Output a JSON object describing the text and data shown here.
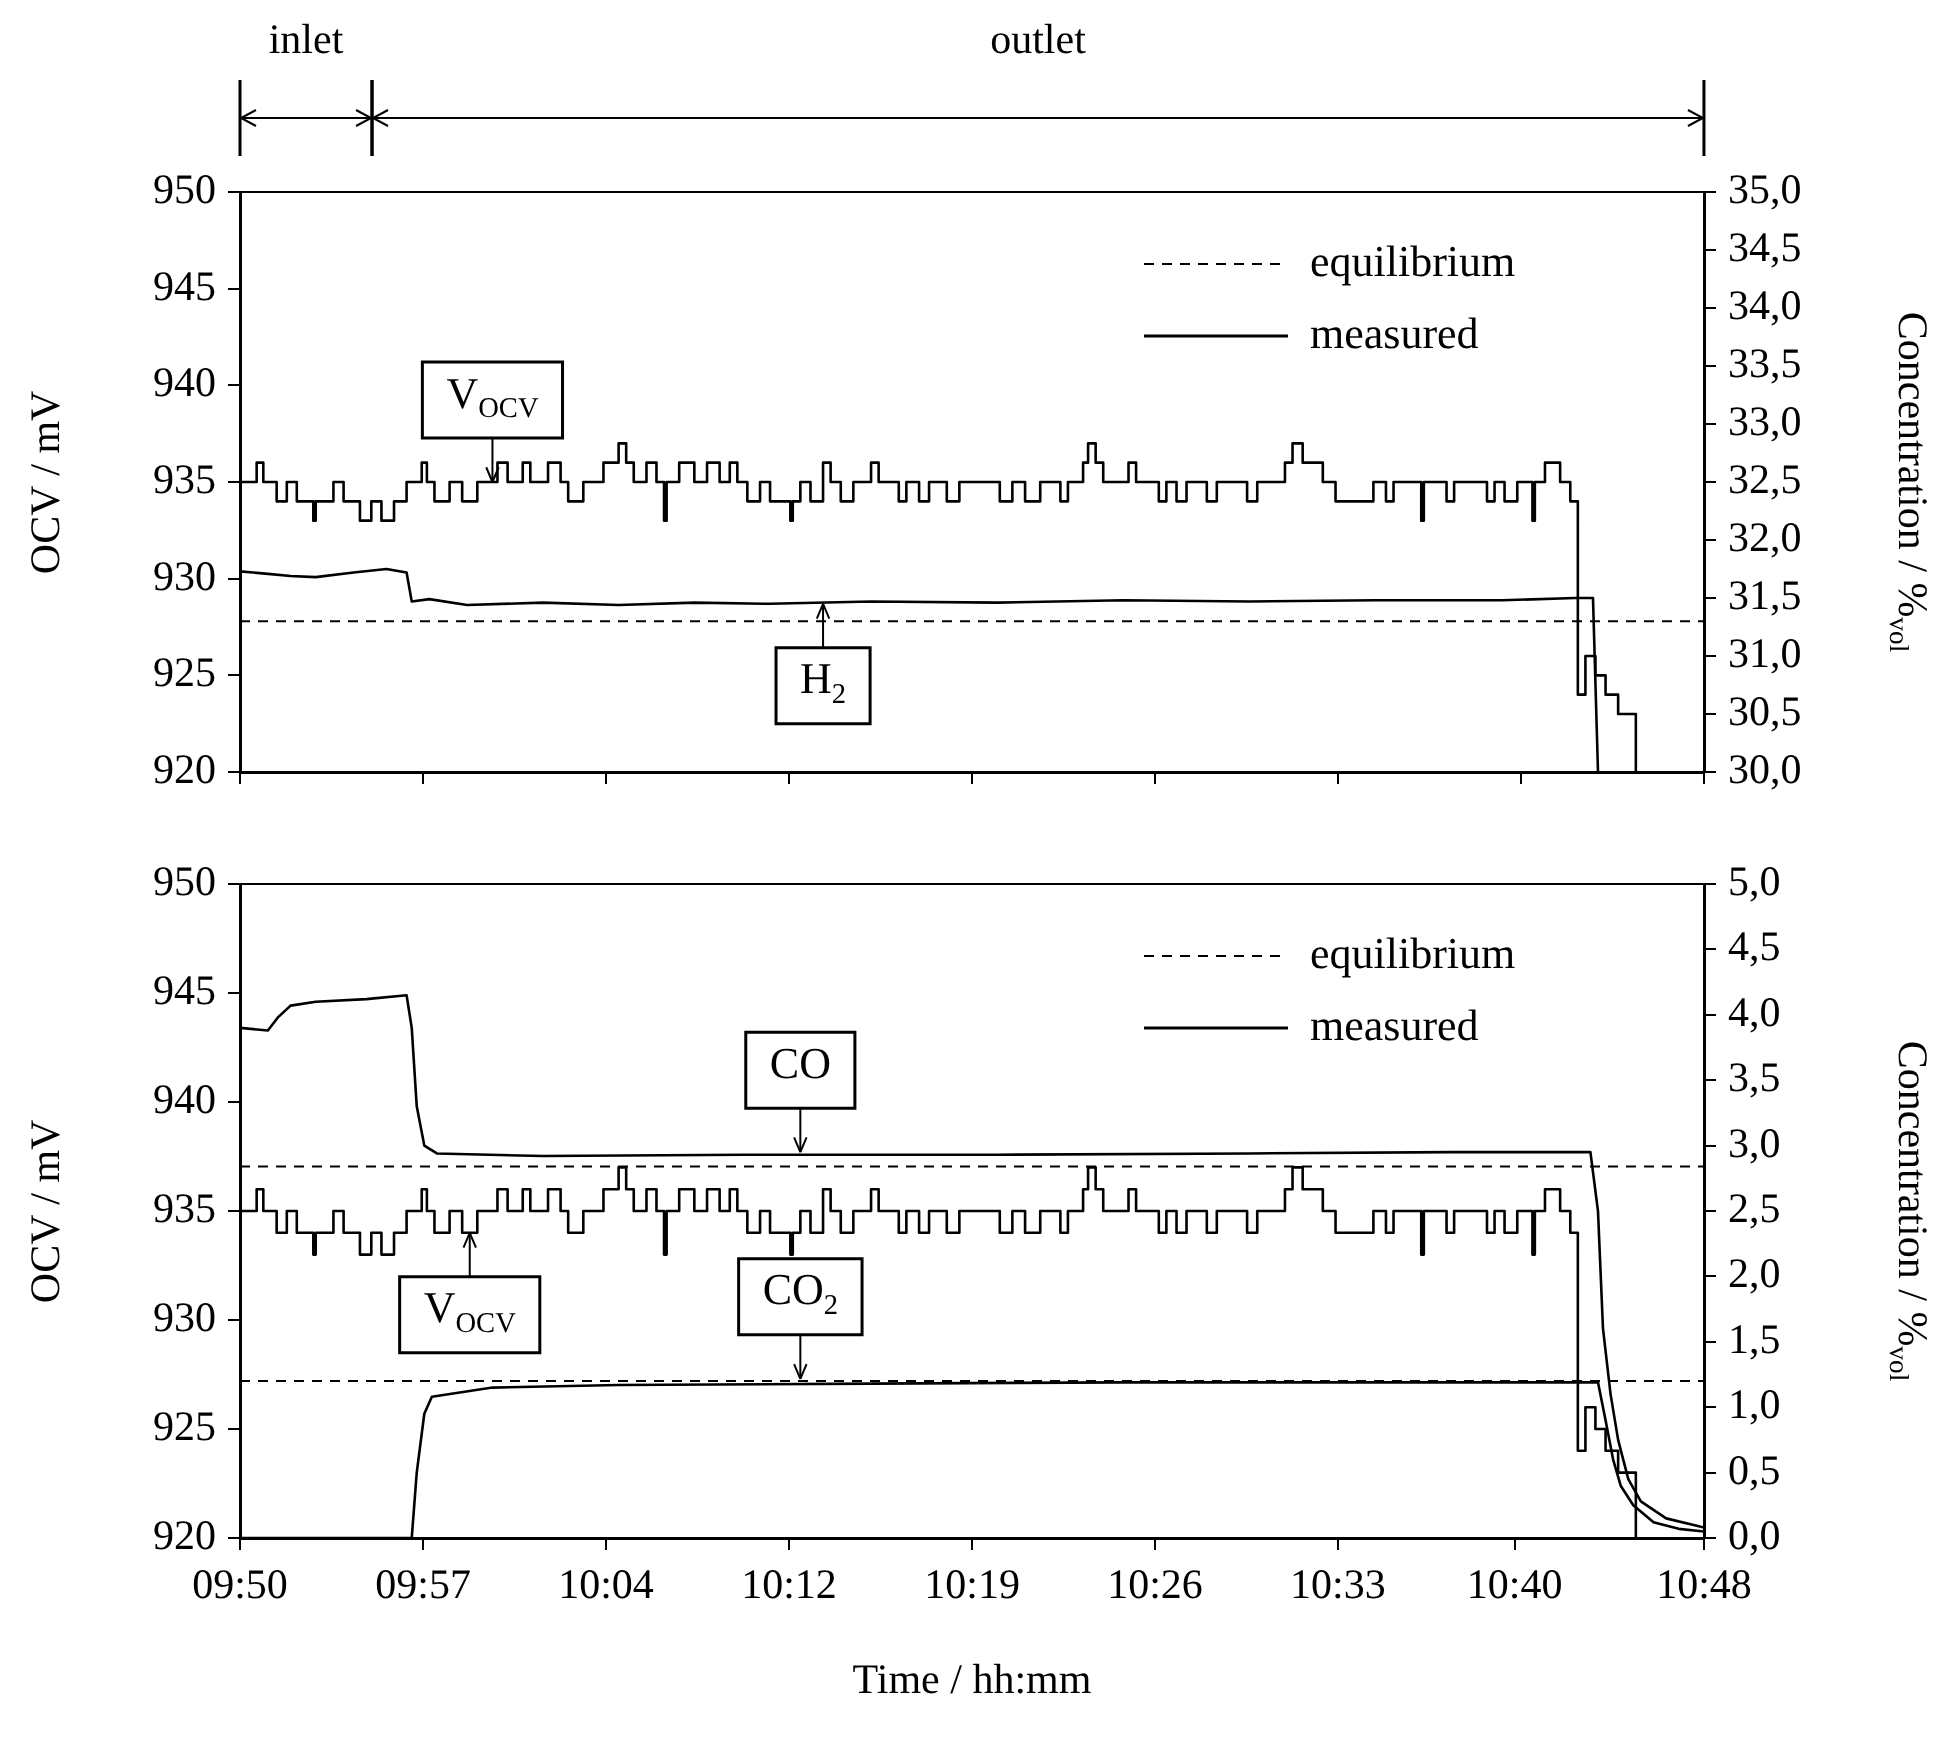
{
  "chart_data": [
    {
      "type": "line",
      "legend": "top right",
      "tick_labels": "y",
      "ylabel": "OCV / mV",
      "y2label": "Concentration / %$_{vol}$",
      "xlim": [
        9.8333,
        10.8
      ],
      "xticks": [
        {
          "value": 9.8333,
          "label": null
        },
        {
          "value": 9.9542,
          "label": null
        },
        {
          "value": 10.075,
          "label": null
        },
        {
          "value": 10.1958,
          "label": null
        },
        {
          "value": 10.3167,
          "label": null
        },
        {
          "value": 10.4375,
          "label": null
        },
        {
          "value": 10.5583,
          "label": null
        },
        {
          "value": 10.6792,
          "label": null
        },
        {
          "value": 10.8,
          "label": null
        }
      ],
      "ylim": [
        920,
        950
      ],
      "yticks": [
        920,
        925,
        930,
        935,
        940,
        945,
        950
      ],
      "y2lim": [
        30,
        35
      ],
      "y2ticks": [
        {
          "value": 30,
          "label": "30,0"
        },
        {
          "value": 30.5,
          "label": "30,5"
        },
        {
          "value": 31,
          "label": "31,0"
        },
        {
          "value": 31.5,
          "label": "31,5"
        },
        {
          "value": 32,
          "label": "32,0"
        },
        {
          "value": 32.5,
          "label": "32,5"
        },
        {
          "value": 33,
          "label": "33,0"
        },
        {
          "value": 33.5,
          "label": "33,5"
        },
        {
          "value": 34,
          "label": "34,0"
        },
        {
          "value": 34.5,
          "label": "34,5"
        },
        {
          "value": 35,
          "label": "35,0"
        }
      ],
      "series": [
        {
          "type": "step",
          "name": "measured",
          "axis": "y",
          "color": "#000000",
          "x": [
            9.8333,
            9.8443,
            9.8487,
            9.8575,
            9.8642,
            9.8708,
            9.8817,
            9.8833,
            9.895,
            9.9017,
            9.9125,
            9.92,
            9.9267,
            9.935,
            9.9433,
            9.9533,
            9.9567,
            9.9617,
            9.9717,
            9.98,
            9.99,
            10.0033,
            10.01,
            10.02,
            10.025,
            10.0367,
            10.045,
            10.05,
            10.06,
            10.0733,
            10.0833,
            10.0883,
            10.0933,
            10.1017,
            10.1083,
            10.1133,
            10.115,
            10.1233,
            10.1333,
            10.1417,
            10.15,
            10.1567,
            10.1617,
            10.1683,
            10.1767,
            10.1833,
            10.1967,
            10.1983,
            10.2033,
            10.21,
            10.2183,
            10.2233,
            10.23,
            10.2383,
            10.25,
            10.255,
            10.2683,
            10.2733,
            10.2817,
            10.2883,
            10.3,
            10.3083,
            10.335,
            10.3433,
            10.3517,
            10.3617,
            10.375,
            10.38,
            10.39,
            10.3933,
            10.3983,
            10.4033,
            10.42,
            10.425,
            10.44,
            10.445,
            10.4517,
            10.4583,
            10.4717,
            10.4783,
            10.4983,
            10.505,
            10.5233,
            10.5283,
            10.535,
            10.5483,
            10.5567,
            10.5817,
            10.59,
            10.595,
            10.6133,
            10.615,
            10.63,
            10.635,
            10.6567,
            10.6617,
            10.6683,
            10.6767,
            10.6867,
            10.6883,
            10.695,
            10.705,
            10.7117,
            10.7167,
            10.7217,
            10.7283,
            10.735,
            10.7433,
            10.755
          ],
          "values": [
            935,
            936,
            935,
            934,
            935,
            934,
            933,
            934,
            935,
            934,
            933,
            934,
            933,
            934,
            935,
            936,
            935,
            934,
            935,
            934,
            935,
            936,
            935,
            936,
            935,
            936,
            935,
            934,
            935,
            936,
            937,
            936,
            935,
            936,
            935,
            933,
            935,
            936,
            935,
            936,
            935,
            936,
            935,
            934,
            935,
            934,
            933,
            934,
            935,
            934,
            936,
            935,
            934,
            935,
            936,
            935,
            934,
            935,
            934,
            935,
            934,
            935,
            934,
            935,
            934,
            935,
            934,
            935,
            936,
            937,
            936,
            935,
            936,
            935,
            934,
            935,
            934,
            935,
            934,
            935,
            934,
            935,
            936,
            937,
            936,
            935,
            934,
            935,
            934,
            935,
            933,
            935,
            934,
            935,
            934,
            935,
            934,
            935,
            933,
            935,
            936,
            935,
            934,
            924,
            926,
            925,
            924,
            923,
            920
          ]
        },
        {
          "type": "line",
          "axis": "y2",
          "color": "#000000",
          "x": [
            9.8333,
            9.85,
            9.8667,
            9.8833,
            9.9083,
            9.93,
            9.9433,
            9.9467,
            9.9583,
            9.9833,
            10.0333,
            10.0833,
            10.1333,
            10.1833,
            10.25,
            10.3333,
            10.4167,
            10.5,
            10.5833,
            10.6667,
            10.715,
            10.7267,
            10.73
          ],
          "values": [
            31.73,
            31.71,
            31.69,
            31.68,
            31.72,
            31.75,
            31.72,
            31.47,
            31.49,
            31.44,
            31.46,
            31.44,
            31.46,
            31.45,
            31.47,
            31.46,
            31.48,
            31.47,
            31.48,
            31.48,
            31.5,
            31.5,
            30.0
          ]
        }
      ],
      "ref_lines": [
        {
          "axis": "y2",
          "value": 31.3,
          "label": "equilibrium",
          "line_style": "dashed"
        }
      ],
      "annotations": [
        "inlet",
        "outlet",
        {
          "text": "V$_{OCV}$",
          "x": 10.0,
          "y": 935
        },
        {
          "text": "H$_{2}$",
          "x": 10.2183,
          "y": 928.7
        }
      ]
    },
    {
      "type": "line",
      "legend": "top right",
      "xlabel": "Time / hh:mm",
      "ylabel": "OCV / mV",
      "y2label": "Concentration / %$_{vol}$",
      "xlim": [
        9.8333,
        10.8
      ],
      "xticks": [
        {
          "value": 9.8333,
          "label": "09:50"
        },
        {
          "value": 9.9542,
          "label": "09:57"
        },
        {
          "value": 10.075,
          "label": "10:04"
        },
        {
          "value": 10.1958,
          "label": "10:12"
        },
        {
          "value": 10.3167,
          "label": "10:19"
        },
        {
          "value": 10.4375,
          "label": "10:26"
        },
        {
          "value": 10.5583,
          "label": "10:33"
        },
        {
          "value": 10.675,
          "label": "10:40"
        },
        {
          "value": 10.8,
          "label": "10:48"
        }
      ],
      "ylim": [
        920,
        950
      ],
      "yticks": [
        920,
        925,
        930,
        935,
        940,
        945,
        950
      ],
      "y2lim": [
        0,
        5
      ],
      "y2ticks": [
        {
          "value": 0,
          "label": "0,0"
        },
        {
          "value": 0.5,
          "label": "0,5"
        },
        {
          "value": 1,
          "label": "1,0"
        },
        {
          "value": 1.5,
          "label": "1,5"
        },
        {
          "value": 2,
          "label": "2,0"
        },
        {
          "value": 2.5,
          "label": "2,5"
        },
        {
          "value": 3,
          "label": "3,0"
        },
        {
          "value": 3.5,
          "label": "3,5"
        },
        {
          "value": 4,
          "label": "4,0"
        },
        {
          "value": 4.5,
          "label": "4,5"
        },
        {
          "value": 5,
          "label": "5,0"
        }
      ],
      "series": [
        {
          "type": "step",
          "name": "measured",
          "axis": "y",
          "color": "#000000",
          "x": [
            9.8333,
            9.8443,
            9.8487,
            9.8575,
            9.8642,
            9.8708,
            9.8817,
            9.8833,
            9.895,
            9.9017,
            9.9125,
            9.92,
            9.9267,
            9.935,
            9.9433,
            9.9533,
            9.9567,
            9.9617,
            9.9717,
            9.98,
            9.99,
            10.0033,
            10.01,
            10.02,
            10.025,
            10.0367,
            10.045,
            10.05,
            10.06,
            10.0733,
            10.0833,
            10.0883,
            10.0933,
            10.1017,
            10.1083,
            10.1133,
            10.115,
            10.1233,
            10.1333,
            10.1417,
            10.15,
            10.1567,
            10.1617,
            10.1683,
            10.1767,
            10.1833,
            10.1967,
            10.1983,
            10.2033,
            10.21,
            10.2183,
            10.2233,
            10.23,
            10.2383,
            10.25,
            10.255,
            10.2683,
            10.2733,
            10.2817,
            10.2883,
            10.3,
            10.3083,
            10.335,
            10.3433,
            10.3517,
            10.3617,
            10.375,
            10.38,
            10.39,
            10.3933,
            10.3983,
            10.4033,
            10.42,
            10.425,
            10.44,
            10.445,
            10.4517,
            10.4583,
            10.4717,
            10.4783,
            10.4983,
            10.505,
            10.5233,
            10.5283,
            10.535,
            10.5483,
            10.5567,
            10.5817,
            10.59,
            10.595,
            10.6133,
            10.615,
            10.63,
            10.635,
            10.6567,
            10.6617,
            10.6683,
            10.6767,
            10.6867,
            10.6883,
            10.695,
            10.705,
            10.7117,
            10.7167,
            10.7217,
            10.7283,
            10.735,
            10.7433,
            10.755
          ],
          "values": [
            935,
            936,
            935,
            934,
            935,
            934,
            933,
            934,
            935,
            934,
            933,
            934,
            933,
            934,
            935,
            936,
            935,
            934,
            935,
            934,
            935,
            936,
            935,
            936,
            935,
            936,
            935,
            934,
            935,
            936,
            937,
            936,
            935,
            936,
            935,
            933,
            935,
            936,
            935,
            936,
            935,
            936,
            935,
            934,
            935,
            934,
            933,
            934,
            935,
            934,
            936,
            935,
            934,
            935,
            936,
            935,
            934,
            935,
            934,
            935,
            934,
            935,
            934,
            935,
            934,
            935,
            934,
            935,
            936,
            937,
            936,
            935,
            936,
            935,
            934,
            935,
            934,
            935,
            934,
            935,
            934,
            935,
            936,
            937,
            936,
            935,
            934,
            935,
            934,
            935,
            933,
            935,
            934,
            935,
            934,
            935,
            934,
            935,
            933,
            935,
            936,
            935,
            934,
            924,
            926,
            925,
            924,
            923,
            920
          ]
        },
        {
          "type": "line",
          "axis": "y2",
          "color": "#000000",
          "x": [
            9.8333,
            9.8517,
            9.8583,
            9.8667,
            9.8833,
            9.9167,
            9.9433,
            9.9467,
            9.95,
            9.955,
            9.9633,
            10.0333,
            10.1667,
            10.3333,
            10.5,
            10.6333,
            10.725,
            10.73,
            10.7333,
            10.7383,
            10.7433,
            10.75,
            10.7583,
            10.775,
            10.8
          ],
          "values": [
            3.9,
            3.88,
            3.98,
            4.07,
            4.1,
            4.12,
            4.15,
            3.9,
            3.3,
            3.0,
            2.94,
            2.92,
            2.93,
            2.93,
            2.94,
            2.95,
            2.95,
            2.5,
            1.6,
            1.1,
            0.75,
            0.45,
            0.28,
            0.15,
            0.08
          ]
        },
        {
          "type": "line",
          "axis": "y2",
          "color": "#000000",
          "x": [
            9.8333,
            9.9467,
            9.95,
            9.955,
            9.96,
            10.0,
            10.0833,
            10.25,
            10.4167,
            10.5833,
            10.73,
            10.735,
            10.74,
            10.745,
            10.7533,
            10.7667,
            10.7833,
            10.8
          ],
          "values": [
            0,
            0,
            0.5,
            0.95,
            1.08,
            1.15,
            1.17,
            1.18,
            1.19,
            1.19,
            1.19,
            0.9,
            0.6,
            0.4,
            0.25,
            0.12,
            0.07,
            0.05
          ]
        }
      ],
      "ref_lines": [
        {
          "axis": "y2",
          "value": 2.84,
          "label": "equilibrium",
          "line_style": "dashed"
        },
        {
          "axis": "y2",
          "value": 1.2,
          "line_style": "dashed"
        }
      ],
      "annotations": [
        {
          "text": "CO",
          "x": 10.2033,
          "y": 937.7
        },
        {
          "text": "V$_{OCV}$",
          "x": 9.985,
          "y": 934
        },
        {
          "text": "CO$_{2}$",
          "x": 10.2033,
          "y": 927.3
        }
      ]
    }
  ]
}
